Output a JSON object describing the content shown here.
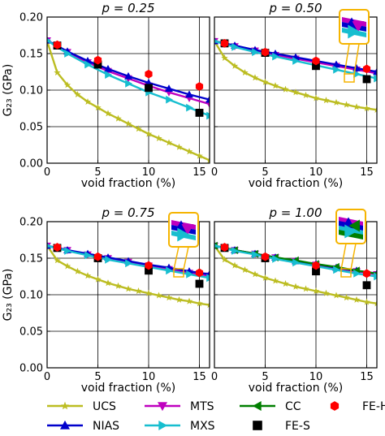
{
  "figure": {
    "ylabel": "G₂₃ (GPa)",
    "xlabel": "void fraction (%)"
  },
  "chart_data": [
    {
      "type": "line",
      "title": "p = 0.25",
      "xlabel": "void fraction (%)",
      "ylabel": "G₂₃ (GPa)",
      "xlim": [
        0,
        16
      ],
      "ylim": [
        0,
        0.2
      ],
      "xticks": [
        "0",
        "5",
        "10",
        "15"
      ],
      "yticks": [
        "0.00",
        "0.05",
        "0.10",
        "0.15",
        "0.20"
      ],
      "grid": true,
      "inset": false,
      "series": [
        {
          "name": "UCS",
          "x": [
            0,
            1,
            2,
            3,
            4,
            5,
            6,
            7,
            8,
            9,
            10,
            11,
            12,
            13,
            14,
            15,
            16
          ],
          "y": [
            0.167,
            0.124,
            0.107,
            0.094,
            0.084,
            0.076,
            0.068,
            0.061,
            0.054,
            0.047,
            0.04,
            0.034,
            0.028,
            0.022,
            0.016,
            0.01,
            0.004
          ]
        },
        {
          "name": "NIAS",
          "x": [
            0,
            2,
            4,
            6,
            8,
            10,
            12,
            14,
            16
          ],
          "y": [
            0.168,
            0.153,
            0.14,
            0.129,
            0.119,
            0.11,
            0.102,
            0.094,
            0.087
          ]
        },
        {
          "name": "MTS",
          "x": [
            0,
            2,
            4,
            6,
            8,
            10,
            12,
            14,
            16
          ],
          "y": [
            0.168,
            0.152,
            0.138,
            0.126,
            0.116,
            0.106,
            0.097,
            0.089,
            0.081
          ]
        },
        {
          "name": "MXS",
          "x": [
            0,
            2,
            4,
            6,
            8,
            10,
            12,
            14,
            16
          ],
          "y": [
            0.168,
            0.15,
            0.135,
            0.121,
            0.109,
            0.097,
            0.087,
            0.076,
            0.065
          ]
        },
        {
          "name": "FE-S",
          "x": [
            1,
            5,
            10,
            15
          ],
          "y": [
            0.161,
            0.135,
            0.103,
            0.069
          ]
        },
        {
          "name": "FE-H",
          "x": [
            1,
            5,
            10,
            15
          ],
          "y": [
            0.162,
            0.141,
            0.122,
            0.105
          ]
        }
      ]
    },
    {
      "type": "line",
      "title": "p = 0.50",
      "xlabel": "void fraction (%)",
      "ylabel": "",
      "xlim": [
        0,
        16
      ],
      "ylim": [
        0,
        0.2
      ],
      "xticks": [
        "0",
        "5",
        "10",
        "15"
      ],
      "yticks": [],
      "grid": true,
      "inset": true,
      "series": [
        {
          "name": "UCS",
          "x": [
            0,
            1,
            2,
            3,
            4,
            5,
            6,
            7,
            8,
            9,
            10,
            11,
            12,
            13,
            14,
            15,
            16
          ],
          "y": [
            0.167,
            0.144,
            0.133,
            0.124,
            0.117,
            0.111,
            0.106,
            0.101,
            0.097,
            0.093,
            0.089,
            0.086,
            0.083,
            0.08,
            0.077,
            0.075,
            0.073
          ]
        },
        {
          "name": "NIAS",
          "x": [
            0,
            2,
            4,
            6,
            8,
            10,
            12,
            14,
            16
          ],
          "y": [
            0.167,
            0.161,
            0.155,
            0.15,
            0.145,
            0.14,
            0.135,
            0.13,
            0.125
          ]
        },
        {
          "name": "MTS",
          "x": [
            0,
            2,
            4,
            6,
            8,
            10,
            12,
            14,
            16
          ],
          "y": [
            0.167,
            0.16,
            0.154,
            0.148,
            0.143,
            0.138,
            0.133,
            0.128,
            0.123
          ]
        },
        {
          "name": "MXS",
          "x": [
            0,
            2,
            4,
            6,
            8,
            10,
            12,
            14,
            16
          ],
          "y": [
            0.167,
            0.159,
            0.152,
            0.146,
            0.14,
            0.134,
            0.128,
            0.122,
            0.116
          ]
        },
        {
          "name": "FE-S",
          "x": [
            1,
            5,
            10,
            15
          ],
          "y": [
            0.164,
            0.151,
            0.133,
            0.115
          ]
        },
        {
          "name": "FE-H",
          "x": [
            1,
            5,
            10,
            15
          ],
          "y": [
            0.164,
            0.152,
            0.14,
            0.129
          ]
        }
      ]
    },
    {
      "type": "line",
      "title": "p = 0.75",
      "xlabel": "void fraction (%)",
      "ylabel": "G₂₃ (GPa)",
      "xlim": [
        0,
        16
      ],
      "ylim": [
        0,
        0.2
      ],
      "xticks": [
        "0",
        "5",
        "10",
        "15"
      ],
      "yticks": [
        "0.00",
        "0.05",
        "0.10",
        "0.15",
        "0.20"
      ],
      "grid": true,
      "inset": true,
      "series": [
        {
          "name": "UCS",
          "x": [
            0,
            1,
            2,
            3,
            4,
            5,
            6,
            7,
            8,
            9,
            10,
            11,
            12,
            13,
            14,
            15,
            16
          ],
          "y": [
            0.167,
            0.147,
            0.139,
            0.132,
            0.126,
            0.121,
            0.116,
            0.112,
            0.108,
            0.105,
            0.102,
            0.099,
            0.096,
            0.093,
            0.091,
            0.088,
            0.086
          ]
        },
        {
          "name": "NIAS",
          "x": [
            0,
            2,
            4,
            6,
            8,
            10,
            12,
            14,
            16
          ],
          "y": [
            0.167,
            0.161,
            0.156,
            0.151,
            0.146,
            0.141,
            0.137,
            0.132,
            0.128
          ]
        },
        {
          "name": "MTS",
          "x": [
            0,
            2,
            4,
            6,
            8,
            10,
            12,
            14,
            16
          ],
          "y": [
            0.167,
            0.161,
            0.155,
            0.15,
            0.145,
            0.14,
            0.135,
            0.13,
            0.126
          ]
        },
        {
          "name": "MXS",
          "x": [
            0,
            2,
            4,
            6,
            8,
            10,
            12,
            14,
            16
          ],
          "y": [
            0.167,
            0.16,
            0.154,
            0.148,
            0.143,
            0.138,
            0.133,
            0.128,
            0.123
          ]
        },
        {
          "name": "FE-S",
          "x": [
            1,
            5,
            10,
            15
          ],
          "y": [
            0.164,
            0.15,
            0.133,
            0.115
          ]
        },
        {
          "name": "FE-H",
          "x": [
            1,
            5,
            10,
            15
          ],
          "y": [
            0.165,
            0.152,
            0.14,
            0.13
          ]
        }
      ]
    },
    {
      "type": "line",
      "title": "p = 1.00",
      "xlabel": "void fraction (%)",
      "ylabel": "",
      "xlim": [
        0,
        16
      ],
      "ylim": [
        0,
        0.2
      ],
      "xticks": [
        "0",
        "5",
        "10",
        "15"
      ],
      "yticks": [],
      "grid": true,
      "inset": true,
      "series": [
        {
          "name": "UCS",
          "x": [
            0,
            1,
            2,
            3,
            4,
            5,
            6,
            7,
            8,
            9,
            10,
            11,
            12,
            13,
            14,
            15,
            16
          ],
          "y": [
            0.167,
            0.148,
            0.14,
            0.134,
            0.128,
            0.123,
            0.119,
            0.115,
            0.111,
            0.108,
            0.105,
            0.102,
            0.099,
            0.096,
            0.093,
            0.09,
            0.088
          ]
        },
        {
          "name": "NIAS",
          "x": [
            0,
            2,
            4,
            6,
            8,
            10,
            12,
            14,
            16
          ],
          "y": [
            0.167,
            0.161,
            0.156,
            0.151,
            0.146,
            0.142,
            0.137,
            0.133,
            0.129
          ]
        },
        {
          "name": "MTS",
          "x": [
            0,
            2,
            4,
            6,
            8,
            10,
            12,
            14,
            16
          ],
          "y": [
            0.167,
            0.161,
            0.156,
            0.151,
            0.146,
            0.141,
            0.136,
            0.132,
            0.128
          ]
        },
        {
          "name": "MXS",
          "x": [
            0,
            2,
            4,
            6,
            8,
            10,
            12,
            14,
            16
          ],
          "y": [
            0.167,
            0.16,
            0.155,
            0.149,
            0.144,
            0.139,
            0.134,
            0.129,
            0.125
          ]
        },
        {
          "name": "CC",
          "x": [
            0,
            2,
            4,
            6,
            8,
            10,
            12,
            14,
            16
          ],
          "y": [
            0.167,
            0.161,
            0.156,
            0.151,
            0.147,
            0.142,
            0.138,
            0.133,
            0.129
          ]
        },
        {
          "name": "FE-S",
          "x": [
            1,
            5,
            10,
            15
          ],
          "y": [
            0.164,
            0.15,
            0.132,
            0.113
          ]
        },
        {
          "name": "FE-H",
          "x": [
            1,
            5,
            10,
            15
          ],
          "y": [
            0.165,
            0.152,
            0.14,
            0.129
          ]
        }
      ]
    }
  ],
  "legend": {
    "items": [
      {
        "name": "UCS",
        "marker": "star-icon",
        "color": "#bcbd22",
        "line": true
      },
      {
        "name": "NIAS",
        "marker": "triangle-up-icon",
        "color": "#0000cc",
        "line": true
      },
      {
        "name": "MTS",
        "marker": "triangle-down-icon",
        "color": "#bf00bf",
        "line": true
      },
      {
        "name": "MXS",
        "marker": "triangle-right-icon",
        "color": "#17becf",
        "line": true
      },
      {
        "name": "CC",
        "marker": "triangle-left-icon",
        "color": "#007f00",
        "line": true
      },
      {
        "name": "FE-S",
        "marker": "square-icon",
        "color": "#000000",
        "line": false
      },
      {
        "name": "FE-H",
        "marker": "hexagon-icon",
        "color": "#ff0000",
        "line": false
      }
    ]
  },
  "colors": {
    "UCS": "#bcbd22",
    "NIAS": "#0000cc",
    "MTS": "#bf00bf",
    "MXS": "#17becf",
    "CC": "#007f00",
    "FE-S": "#000000",
    "FE-H": "#ff0000",
    "inset_border": "#f5b400"
  }
}
